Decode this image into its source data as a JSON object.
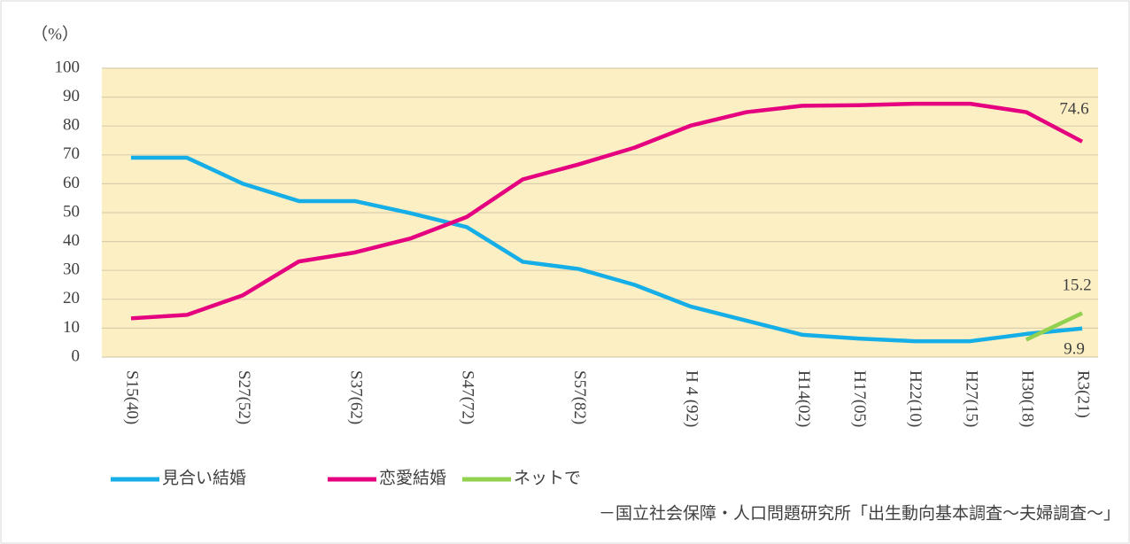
{
  "chart_data": {
    "type": "line",
    "y_label": "（%）",
    "categories": [
      "S15(40)",
      null,
      "S27(52)",
      null,
      "S37(62)",
      null,
      "S47(72)",
      null,
      "S57(82)",
      null,
      "H 4 (92)",
      null,
      "H14(02)",
      "H17(05)",
      "H22(10)",
      "H27(15)",
      "H30(18)",
      "R3(21)"
    ],
    "series": [
      {
        "name": "見合い結婚",
        "color": "#16aee6",
        "values": [
          69.0,
          69.0,
          60.0,
          54.0,
          54.0,
          49.8,
          45.0,
          33.0,
          30.5,
          25.0,
          17.5,
          12.6,
          7.7,
          6.4,
          5.5,
          5.5,
          8.0,
          9.9
        ]
      },
      {
        "name": "恋愛結婚",
        "color": "#e4007f",
        "values": [
          13.4,
          14.6,
          21.4,
          33.1,
          36.2,
          41.1,
          48.5,
          61.5,
          66.7,
          72.5,
          80.1,
          84.8,
          87.0,
          87.2,
          87.7,
          87.7,
          84.8,
          74.6
        ]
      },
      {
        "name": "ネットで",
        "color": "#92d050",
        "values": [
          null,
          null,
          null,
          null,
          null,
          null,
          null,
          null,
          null,
          null,
          null,
          null,
          null,
          null,
          null,
          null,
          6.0,
          15.2
        ]
      }
    ],
    "ylim": [
      0,
      100
    ],
    "yticks": [
      0,
      10,
      20,
      30,
      40,
      50,
      60,
      70,
      80,
      90,
      100
    ],
    "grid": true,
    "plot_background": "#fdefc4",
    "source": "－国立社会保障・人口問題研究所「出生動向基本調査～夫婦調査～」"
  }
}
